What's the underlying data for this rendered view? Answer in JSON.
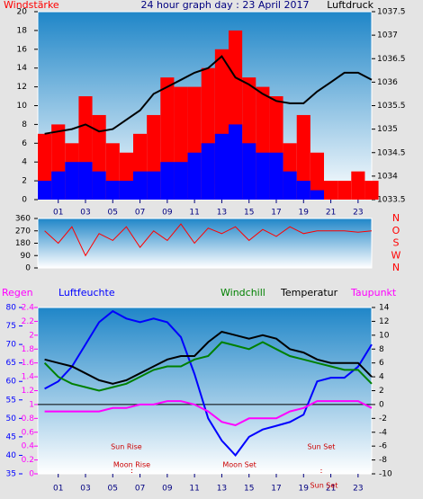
{
  "header": {
    "title": "24 hour graph day : 23 April 2017"
  },
  "chart_data": [
    {
      "type": "bar",
      "left_label": "Windstärke",
      "right_label": "Luftdruck",
      "x": [
        0,
        1,
        2,
        3,
        4,
        5,
        6,
        7,
        8,
        9,
        10,
        11,
        12,
        13,
        14,
        15,
        16,
        17,
        18,
        19,
        20,
        21,
        22,
        23,
        24
      ],
      "xlim": [
        -0.5,
        24
      ],
      "xticks": [
        {
          "value": 1,
          "label": "01"
        },
        {
          "value": 3,
          "label": "03"
        },
        {
          "value": 5,
          "label": "05"
        },
        {
          "value": 7,
          "label": "07"
        },
        {
          "value": 9,
          "label": "09"
        },
        {
          "value": 11,
          "label": "11"
        },
        {
          "value": 13,
          "label": "13"
        },
        {
          "value": 15,
          "label": "15"
        },
        {
          "value": 17,
          "label": "17"
        },
        {
          "value": 19,
          "label": "19"
        },
        {
          "value": 21,
          "label": "21"
        },
        {
          "value": 23,
          "label": "23"
        }
      ],
      "ylim": [
        0,
        20
      ],
      "yticks": [
        0,
        2,
        4,
        6,
        8,
        10,
        12,
        14,
        16,
        18,
        20
      ],
      "y2lim": [
        1033.5,
        1037.5
      ],
      "y2ticks": [
        1033.5,
        1034,
        1034.5,
        1035,
        1035.5,
        1036,
        1036.5,
        1037,
        1037.5
      ],
      "series": [
        {
          "color": "#ff0000",
          "values": [
            7,
            8,
            6,
            11,
            9,
            6,
            5,
            7,
            9,
            13,
            12,
            12,
            14,
            16,
            18,
            13,
            12,
            11,
            6,
            9,
            5,
            2,
            2,
            3,
            2
          ]
        },
        {
          "color": "#0000ff",
          "values": [
            2,
            3,
            4,
            4,
            3,
            2,
            2,
            3,
            3,
            4,
            4,
            5,
            6,
            7,
            8,
            6,
            5,
            5,
            3,
            2,
            1,
            0,
            0,
            0,
            0
          ]
        },
        {
          "color": "#000000",
          "axis": "y2",
          "values": [
            1034.9,
            1034.95,
            1035.0,
            1035.1,
            1034.95,
            1035.0,
            1035.2,
            1035.4,
            1035.75,
            1035.9,
            1036.05,
            1036.2,
            1036.3,
            1036.55,
            1036.1,
            1035.95,
            1035.75,
            1035.6,
            1035.55,
            1035.55,
            1035.8,
            1036.0,
            1036.2,
            1036.2,
            1036.05
          ]
        }
      ]
    },
    {
      "type": "line",
      "x": [
        0,
        1,
        2,
        3,
        4,
        5,
        6,
        7,
        8,
        9,
        10,
        11,
        12,
        13,
        14,
        15,
        16,
        17,
        18,
        19,
        20,
        21,
        22,
        23,
        24
      ],
      "xlim": [
        -0.5,
        24
      ],
      "ylim": [
        0,
        360
      ],
      "yticks": [
        0,
        90,
        180,
        270,
        360
      ],
      "direction_labels": [
        "N",
        "W",
        "S",
        "O",
        "N"
      ],
      "series": [
        {
          "color": "#ff0000",
          "values": [
            270,
            180,
            300,
            90,
            250,
            200,
            300,
            150,
            270,
            200,
            320,
            180,
            290,
            250,
            300,
            200,
            280,
            230,
            300,
            250,
            270,
            270,
            270,
            260,
            270
          ]
        }
      ]
    },
    {
      "type": "line",
      "x": [
        0,
        1,
        2,
        3,
        4,
        5,
        6,
        7,
        8,
        9,
        10,
        11,
        12,
        13,
        14,
        15,
        16,
        17,
        18,
        19,
        20,
        21,
        22,
        23,
        24
      ],
      "xlim": [
        -0.5,
        24
      ],
      "xticks": [
        {
          "value": 1,
          "label": "01"
        },
        {
          "value": 3,
          "label": "03"
        },
        {
          "value": 5,
          "label": "05"
        },
        {
          "value": 7,
          "label": "07"
        },
        {
          "value": 9,
          "label": "09"
        },
        {
          "value": 11,
          "label": "11"
        },
        {
          "value": 13,
          "label": "13"
        },
        {
          "value": 15,
          "label": "15"
        },
        {
          "value": 17,
          "label": "17"
        },
        {
          "value": 19,
          "label": "19"
        },
        {
          "value": 21,
          "label": "21"
        },
        {
          "value": 23,
          "label": "23"
        }
      ],
      "ylim": [
        35,
        80
      ],
      "yticks": [
        35,
        40,
        45,
        50,
        55,
        60,
        65,
        70,
        75,
        80
      ],
      "y2lim": [
        -10,
        14
      ],
      "y2ticks": [
        -10,
        -8,
        -6,
        -4,
        -2,
        0,
        2,
        4,
        6,
        8,
        10,
        12,
        14
      ],
      "y3lim": [
        0,
        2.4
      ],
      "y3ticks": [
        0,
        0.2,
        0.4,
        0.6,
        0.8,
        1,
        1.2,
        1.4,
        1.6,
        1.8,
        2,
        2.2,
        2.4
      ],
      "series": [
        {
          "name": "Regen",
          "color": "#ff00ff",
          "axis": "y3",
          "values": [
            0,
            0,
            0,
            0,
            0,
            0,
            0,
            0,
            0,
            0,
            0,
            0,
            0,
            0,
            0,
            0,
            0,
            0,
            0,
            0,
            0,
            0,
            0,
            0,
            0
          ]
        },
        {
          "name": "Luftfeuchte",
          "color": "#0000ff",
          "values": [
            58,
            60,
            64,
            70,
            76,
            79,
            77,
            76,
            77,
            76,
            72,
            62,
            50,
            44,
            40,
            45,
            47,
            48,
            49,
            51,
            60,
            61,
            61,
            64,
            70
          ]
        },
        {
          "name": "Windchill",
          "color": "#008000",
          "axis": "y2",
          "values": [
            6,
            4,
            3,
            2.5,
            2,
            2.5,
            3,
            4,
            5,
            5.5,
            5.5,
            6.5,
            7,
            9,
            8.5,
            8,
            9,
            8,
            7,
            6.5,
            6,
            5.5,
            5,
            5,
            3
          ]
        },
        {
          "name": "Temperatur",
          "color": "#000000",
          "axis": "y2",
          "values": [
            6.5,
            6,
            5.5,
            4.5,
            3.5,
            3,
            3.5,
            4.5,
            5.5,
            6.5,
            7,
            7,
            9,
            10.5,
            10,
            9.5,
            10,
            9.5,
            8,
            7.5,
            6.5,
            6,
            6,
            6,
            4
          ]
        },
        {
          "name": "Taupunkt",
          "color": "#ff00ff",
          "axis": "y2",
          "values": [
            -1,
            -1,
            -1,
            -1,
            -1,
            -0.5,
            -0.5,
            0,
            0,
            0.5,
            0.5,
            0,
            -1,
            -2.5,
            -3,
            -2,
            -2,
            -2,
            -1,
            -0.5,
            0.5,
            0.5,
            0.5,
            0.5,
            -0.5
          ]
        }
      ],
      "annotations": [
        {
          "text": "Sun Rise",
          "x": 6
        },
        {
          "text": "Moon Rise",
          "x": 6.4
        },
        {
          "text": "Moon Set",
          "x": 14.3
        },
        {
          "text": "Sun Set",
          "x": 20.3
        },
        {
          "text": "Sun Set",
          "x": 20.5
        }
      ]
    }
  ]
}
